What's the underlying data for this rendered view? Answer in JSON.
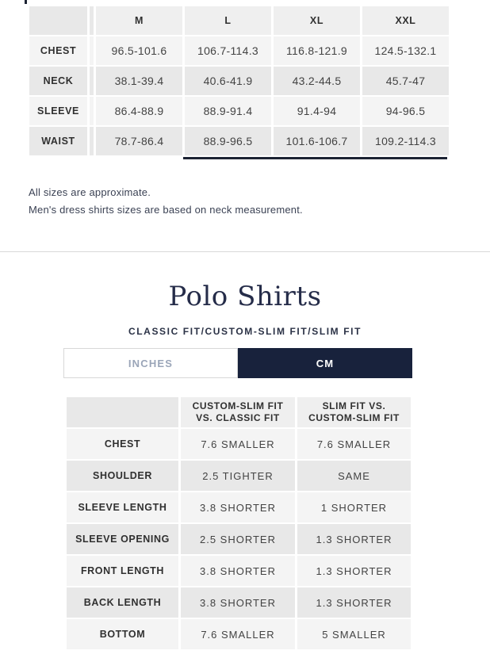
{
  "colors": {
    "navy": "#18223c",
    "title_navy": "#252c49",
    "subtitle_navy": "#2b3246",
    "cell_light": "#f4f4f4",
    "cell_dark": "#e8e8e8",
    "header_data": "#efefef",
    "cell_text": "#434343",
    "label_text": "#303030",
    "note_text": "#3b4254",
    "divider": "#d9d9d9",
    "border": "#d8d8d8",
    "inactive_tab_text": "#9aa5b8",
    "scrollbar": "#1c2333"
  },
  "size_table": {
    "columns": [
      [
        "M"
      ],
      [
        "L"
      ],
      [
        "XL"
      ],
      [
        "XXL"
      ]
    ],
    "rows": [
      {
        "label": "CHEST",
        "values": [
          "96.5-101.6",
          "106.7-114.3",
          "116.8-121.9",
          "124.5-132.1"
        ]
      },
      {
        "label": "NECK",
        "values": [
          "38.1-39.4",
          "40.6-41.9",
          "43.2-44.5",
          "45.7-47"
        ]
      },
      {
        "label": "SLEEVE",
        "values": [
          "86.4-88.9",
          "88.9-91.4",
          "91.4-94",
          "94-96.5"
        ]
      },
      {
        "label": "WAIST",
        "values": [
          "78.7-86.4",
          "88.9-96.5",
          "101.6-106.7",
          "109.2-114.3"
        ]
      }
    ]
  },
  "notes": [
    "All sizes are approximate.",
    "Men's dress shirts sizes are based on neck measurement."
  ],
  "section": {
    "title": "Polo Shirts",
    "subtitle": "CLASSIC FIT/CUSTOM-SLIM FIT/SLIM FIT",
    "tabs": [
      {
        "label": "INCHES",
        "active": false
      },
      {
        "label": "CM",
        "active": true
      }
    ]
  },
  "fit_table": {
    "columns": [
      [
        "CUSTOM-SLIM FIT",
        "VS. CLASSIC FIT"
      ],
      [
        "SLIM FIT VS.",
        "CUSTOM-SLIM FIT"
      ]
    ],
    "rows": [
      {
        "label": "CHEST",
        "values": [
          "7.6 SMALLER",
          "7.6 SMALLER"
        ]
      },
      {
        "label": "SHOULDER",
        "values": [
          "2.5 TIGHTER",
          "SAME"
        ]
      },
      {
        "label": "SLEEVE LENGTH",
        "values": [
          "3.8 SHORTER",
          "1 SHORTER"
        ]
      },
      {
        "label": "SLEEVE OPENING",
        "values": [
          "2.5 SHORTER",
          "1.3 SHORTER"
        ]
      },
      {
        "label": "FRONT LENGTH",
        "values": [
          "3.8 SHORTER",
          "1.3 SHORTER"
        ]
      },
      {
        "label": "BACK LENGTH",
        "values": [
          "3.8 SHORTER",
          "1.3 SHORTER"
        ]
      },
      {
        "label": "BOTTOM",
        "values": [
          "7.6 SMALLER",
          "5 SMALLER"
        ]
      }
    ]
  }
}
